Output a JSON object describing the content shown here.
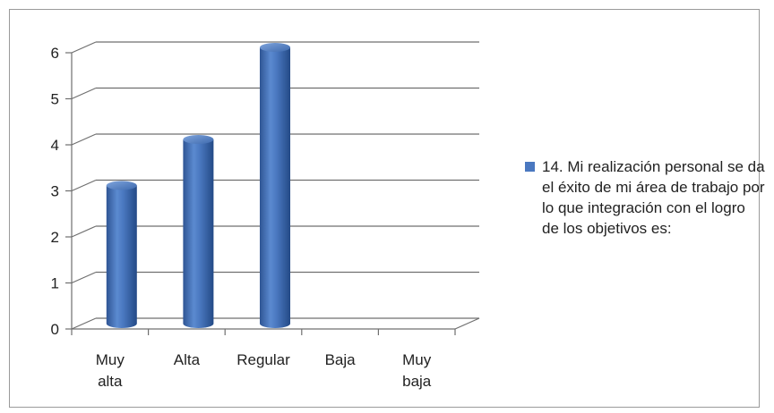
{
  "chart_data": {
    "type": "bar",
    "categories": [
      "Muy alta",
      "Alta",
      "Regular",
      "Baja",
      "Muy baja"
    ],
    "category_lines": [
      [
        "Muy",
        "alta"
      ],
      [
        "Alta"
      ],
      [
        "Regular"
      ],
      [
        "Baja"
      ],
      [
        "Muy",
        "baja"
      ]
    ],
    "series": [
      {
        "name": "14. Mi realización personal se da el éxito de mi área de trabajo por lo que integración con el logro de los objetivos es:",
        "values": [
          3,
          4,
          6,
          0,
          0
        ],
        "color": "#4a78c0"
      }
    ],
    "y_ticks": [
      "0",
      "1",
      "2",
      "3",
      "4",
      "5",
      "6"
    ],
    "ylim": [
      0,
      6
    ],
    "grid": true,
    "legend_position": "right",
    "style": "3d-cylinder"
  }
}
